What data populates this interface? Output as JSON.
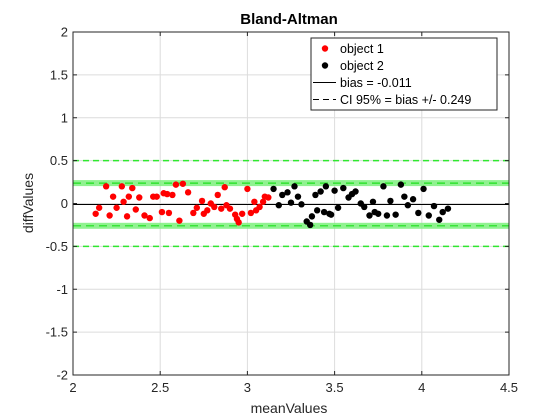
{
  "colors": {
    "object1": "#ff0000",
    "object2": "#000000",
    "band": "#7df07d",
    "dashed": "#1ee01e",
    "limits": "#2fe82f",
    "axis": "#262626",
    "grid": "#dcdcdc"
  },
  "chart_data": {
    "type": "scatter",
    "title": "Bland-Altman",
    "xlabel": "meanValues",
    "ylabel": "diffValues",
    "xlim": [
      2,
      4.5
    ],
    "ylim": [
      -2,
      2
    ],
    "xticks": [
      "2",
      "2.5",
      "3",
      "3.5",
      "4",
      "4.5"
    ],
    "yticks": [
      "-2",
      "-1.5",
      "-1",
      "-0.5",
      "0",
      "0.5",
      "1",
      "1.5",
      "2"
    ],
    "grid": true,
    "legend_location": "top-right",
    "legend": [
      "object 1",
      "object 2",
      "bias = -0.011",
      "CI 95% = bias +/- 0.249"
    ],
    "bias": -0.011,
    "ci": 0.249,
    "outer_limits": [
      0.5,
      -0.5
    ],
    "series": [
      {
        "name": "object 1",
        "x": [
          2.13,
          2.15,
          2.19,
          2.21,
          2.23,
          2.25,
          2.28,
          2.29,
          2.31,
          2.32,
          2.34,
          2.36,
          2.38,
          2.41,
          2.44,
          2.46,
          2.48,
          2.51,
          2.52,
          2.54,
          2.55,
          2.57,
          2.59,
          2.61,
          2.63,
          2.66,
          2.69,
          2.71,
          2.74,
          2.75,
          2.77,
          2.79,
          2.81,
          2.83,
          2.85,
          2.87,
          2.88,
          2.9,
          2.93,
          2.94,
          2.95,
          2.97,
          3.0,
          3.02,
          3.04,
          3.05,
          3.07,
          3.09,
          3.1,
          3.12
        ],
        "y": [
          -0.12,
          -0.05,
          0.2,
          -0.14,
          0.08,
          -0.05,
          0.2,
          0.02,
          -0.15,
          0.08,
          0.18,
          -0.07,
          0.07,
          -0.14,
          -0.17,
          0.08,
          0.08,
          -0.1,
          0.12,
          0.11,
          -0.11,
          0.1,
          0.22,
          -0.2,
          0.23,
          0.13,
          -0.11,
          -0.05,
          0.03,
          -0.12,
          -0.08,
          0.0,
          -0.04,
          0.1,
          -0.06,
          0.19,
          -0.02,
          -0.06,
          -0.13,
          -0.18,
          -0.22,
          -0.12,
          0.17,
          -0.11,
          0.02,
          -0.08,
          -0.04,
          0.02,
          0.08,
          0.07
        ]
      },
      {
        "name": "object 2",
        "x": [
          3.15,
          3.18,
          3.2,
          3.23,
          3.25,
          3.27,
          3.29,
          3.31,
          3.34,
          3.36,
          3.37,
          3.39,
          3.4,
          3.42,
          3.44,
          3.45,
          3.47,
          3.48,
          3.5,
          3.52,
          3.55,
          3.58,
          3.6,
          3.62,
          3.65,
          3.67,
          3.7,
          3.72,
          3.73,
          3.75,
          3.78,
          3.8,
          3.82,
          3.85,
          3.88,
          3.9,
          3.92,
          3.95,
          3.98,
          4.01,
          4.04,
          4.07,
          4.1,
          4.12,
          4.15
        ],
        "y": [
          0.17,
          -0.02,
          0.1,
          0.13,
          0.01,
          0.2,
          0.08,
          -0.01,
          -0.21,
          -0.25,
          -0.15,
          0.1,
          -0.08,
          0.14,
          -0.1,
          0.2,
          -0.12,
          -0.13,
          0.15,
          -0.05,
          0.18,
          0.07,
          0.11,
          0.14,
          0.0,
          -0.04,
          -0.14,
          0.02,
          -0.1,
          -0.12,
          0.2,
          -0.14,
          0.03,
          -0.13,
          0.22,
          0.08,
          -0.02,
          0.05,
          -0.11,
          0.17,
          -0.14,
          -0.03,
          -0.19,
          -0.1,
          -0.06
        ]
      }
    ]
  }
}
